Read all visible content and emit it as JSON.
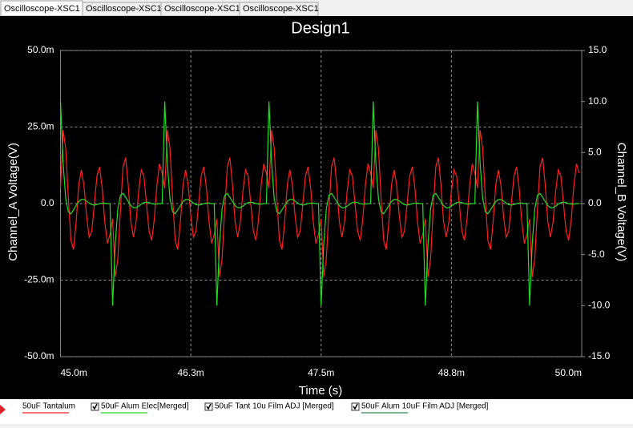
{
  "tabs": [
    "Oscilloscope-XSC1",
    "Oscilloscope-XSC1",
    "Oscilloscope-XSC1",
    "Oscilloscope-XSC1"
  ],
  "chart_data": {
    "type": "line",
    "title": "Design1",
    "x_label": "Time (s)",
    "y_label": "Channel_A Voltage(V)",
    "y2_label": "Channel_B Voltage(V)",
    "grid": true,
    "xlim": [
      0.045,
      0.05
    ],
    "xticks": [
      {
        "value": 0.045,
        "label": "45.0m"
      },
      {
        "value": 0.04625,
        "label": "46.3m"
      },
      {
        "value": 0.0475,
        "label": "47.5m"
      },
      {
        "value": 0.04875,
        "label": "48.8m"
      },
      {
        "value": 0.05,
        "label": "50.0m"
      }
    ],
    "ylim": [
      -0.05,
      0.05
    ],
    "yticks": [
      {
        "value": -0.05,
        "label": "-50.0m"
      },
      {
        "value": -0.025,
        "label": "-25.0m"
      },
      {
        "value": 0,
        "label": "0.0"
      },
      {
        "value": 0.025,
        "label": "25.0m"
      },
      {
        "value": 0.05,
        "label": "50.0m"
      }
    ],
    "y2lim": [
      -15,
      15
    ],
    "y2ticks": [
      {
        "value": -15,
        "label": "-15.0"
      },
      {
        "value": -10,
        "label": "-10.0"
      },
      {
        "value": -5,
        "label": "-5.0"
      },
      {
        "value": 0,
        "label": "0.0"
      },
      {
        "value": 5,
        "label": "5.0"
      },
      {
        "value": 10,
        "label": "10.0"
      },
      {
        "value": 15,
        "label": "15.0"
      }
    ],
    "x": [
      0.045,
      0.045025,
      0.04505,
      0.045075,
      0.0451,
      0.045125,
      0.04515,
      0.045175,
      0.0452,
      0.045225,
      0.04525,
      0.045275,
      0.0453,
      0.045325,
      0.04535,
      0.045375,
      0.0454,
      0.045425,
      0.04545,
      0.045475,
      0.0455,
      0.045525,
      0.04555,
      0.045575,
      0.0456,
      0.045625,
      0.04565,
      0.045675,
      0.0457,
      0.045725,
      0.04575,
      0.045775,
      0.0458,
      0.045825,
      0.04585,
      0.045875,
      0.0459,
      0.045925,
      0.04595,
      0.045975,
      0.046,
      0.046025,
      0.04605,
      0.046075,
      0.0461,
      0.046125,
      0.04615,
      0.046175,
      0.0462,
      0.046225,
      0.04625,
      0.046275,
      0.0463,
      0.046325,
      0.04635,
      0.046375,
      0.0464,
      0.046425,
      0.04645,
      0.046475,
      0.0465,
      0.046525,
      0.04655,
      0.046575,
      0.0466,
      0.046625,
      0.04665,
      0.046675,
      0.0467,
      0.046725,
      0.04675,
      0.046775,
      0.0468,
      0.046825,
      0.04685,
      0.046875,
      0.0469,
      0.046925,
      0.04695,
      0.046975,
      0.047,
      0.047025,
      0.04705,
      0.047075,
      0.0471,
      0.047125,
      0.04715,
      0.047175,
      0.0472,
      0.047225,
      0.04725,
      0.047275,
      0.0473,
      0.047325,
      0.04735,
      0.047375,
      0.0474,
      0.047425,
      0.04745,
      0.047475,
      0.0475,
      0.047525,
      0.04755,
      0.047575,
      0.0476,
      0.047625,
      0.04765,
      0.047675,
      0.0477,
      0.047725,
      0.04775,
      0.047775,
      0.0478,
      0.047825,
      0.04785,
      0.047875,
      0.0479,
      0.047925,
      0.04795,
      0.047975,
      0.048,
      0.048025,
      0.04805,
      0.048075,
      0.0481,
      0.048125,
      0.04815,
      0.048175,
      0.0482,
      0.048225,
      0.04825,
      0.048275,
      0.0483,
      0.048325,
      0.04835,
      0.048375,
      0.0484,
      0.048425,
      0.04845,
      0.048475,
      0.0485,
      0.048525,
      0.04855,
      0.048575,
      0.0486,
      0.048625,
      0.04865,
      0.048675,
      0.0487,
      0.048725,
      0.04875,
      0.048775,
      0.0488,
      0.048825,
      0.04885,
      0.048875,
      0.0489,
      0.048925,
      0.04895,
      0.048975,
      0.049,
      0.049025,
      0.04905,
      0.049075,
      0.0491,
      0.049125,
      0.04915,
      0.049175,
      0.0492,
      0.049225,
      0.04925,
      0.049275,
      0.0493,
      0.049325,
      0.04935,
      0.049375,
      0.0494,
      0.049425,
      0.04945,
      0.049475,
      0.0495,
      0.049525,
      0.04955,
      0.049575,
      0.0496,
      0.049625,
      0.04965,
      0.049675,
      0.0497,
      0.049725,
      0.04975,
      0.049775,
      0.0498,
      0.049825,
      0.04985,
      0.049875,
      0.0499,
      0.049925,
      0.04995,
      0.049975
    ],
    "series": [
      {
        "name": "50uF Tantalum",
        "color": "#ff2020",
        "values": [
          0.005,
          0.024,
          0.018,
          0.002,
          -0.012,
          -0.015,
          -0.006,
          0.006,
          0.011,
          0.006,
          -0.004,
          -0.011,
          -0.009,
          0,
          0.009,
          0.012,
          0.005,
          -0.006,
          -0.013,
          -0.01,
          -0.005,
          -0.024,
          -0.018,
          -0.002,
          0.012,
          0.015,
          0.006,
          -0.006,
          -0.011,
          -0.006,
          0.004,
          0.011,
          0.009,
          0,
          -0.009,
          -0.012,
          -0.005,
          0.006,
          0.013,
          0.01,
          0.005,
          0.024,
          0.018,
          0.002,
          -0.012,
          -0.015,
          -0.006,
          0.006,
          0.011,
          0.006,
          -0.004,
          -0.011,
          -0.009,
          0,
          0.009,
          0.012,
          0.005,
          -0.006,
          -0.013,
          -0.01,
          -0.005,
          -0.024,
          -0.018,
          -0.002,
          0.012,
          0.015,
          0.006,
          -0.006,
          -0.011,
          -0.006,
          0.004,
          0.011,
          0.009,
          0,
          -0.009,
          -0.012,
          -0.005,
          0.006,
          0.013,
          0.01,
          0.005,
          0.024,
          0.018,
          0.002,
          -0.012,
          -0.015,
          -0.006,
          0.006,
          0.011,
          0.006,
          -0.004,
          -0.011,
          -0.009,
          0,
          0.009,
          0.012,
          0.005,
          -0.006,
          -0.013,
          -0.01,
          -0.005,
          -0.024,
          -0.018,
          -0.002,
          0.012,
          0.015,
          0.006,
          -0.006,
          -0.011,
          -0.006,
          0.004,
          0.011,
          0.009,
          0,
          -0.009,
          -0.012,
          -0.005,
          0.006,
          0.013,
          0.01,
          0.005,
          0.024,
          0.018,
          0.002,
          -0.012,
          -0.015,
          -0.006,
          0.006,
          0.011,
          0.006,
          -0.004,
          -0.011,
          -0.009,
          0,
          0.009,
          0.012,
          0.005,
          -0.006,
          -0.013,
          -0.01,
          -0.005,
          -0.024,
          -0.018,
          -0.002,
          0.012,
          0.015,
          0.006,
          -0.006,
          -0.011,
          -0.006,
          0.004,
          0.011,
          0.009,
          0,
          -0.009,
          -0.012,
          -0.005,
          0.006,
          0.013,
          0.01,
          0.005,
          0.024,
          0.018,
          0.002,
          -0.012,
          -0.015,
          -0.006,
          0.006,
          0.011,
          0.006,
          -0.004,
          -0.011,
          -0.009,
          0,
          0.009,
          0.012,
          0.005,
          -0.006,
          -0.013,
          -0.01,
          -0.005,
          -0.024,
          -0.018,
          -0.002,
          0.012,
          0.015,
          0.006,
          -0.006,
          -0.011,
          -0.006,
          0.004,
          0.011,
          0.009,
          0,
          -0.009,
          -0.012,
          -0.005,
          0.006,
          0.013,
          0.01
        ]
      },
      {
        "name": "50uF Alum Elec[Merged]",
        "color": "#22dd22",
        "axis": "y2",
        "values": [
          10,
          4,
          0.5,
          -0.8,
          -1,
          -0.6,
          -0.2,
          0.2,
          0.4,
          0.4,
          0.25,
          0.05,
          -0.1,
          -0.15,
          -0.1,
          0,
          0.05,
          0.05,
          0,
          0,
          -10,
          -4,
          -0.5,
          0.8,
          1,
          0.6,
          0.2,
          -0.2,
          -0.4,
          -0.4,
          -0.25,
          -0.05,
          0.1,
          0.15,
          0.1,
          0,
          -0.05,
          -0.05,
          0,
          0,
          10,
          4,
          0.5,
          -0.8,
          -1,
          -0.6,
          -0.2,
          0.2,
          0.4,
          0.4,
          0.25,
          0.05,
          -0.1,
          -0.15,
          -0.1,
          0,
          0.05,
          0.05,
          0,
          0,
          -10,
          -4,
          -0.5,
          0.8,
          1,
          0.6,
          0.2,
          -0.2,
          -0.4,
          -0.4,
          -0.25,
          -0.05,
          0.1,
          0.15,
          0.1,
          0,
          -0.05,
          -0.05,
          0,
          0,
          10,
          4,
          0.5,
          -0.8,
          -1,
          -0.6,
          -0.2,
          0.2,
          0.4,
          0.4,
          0.25,
          0.05,
          -0.1,
          -0.15,
          -0.1,
          0,
          0.05,
          0.05,
          0,
          0,
          -10,
          -4,
          -0.5,
          0.8,
          1,
          0.6,
          0.2,
          -0.2,
          -0.4,
          -0.4,
          -0.25,
          -0.05,
          0.1,
          0.15,
          0.1,
          0,
          -0.05,
          -0.05,
          0,
          0,
          10,
          4,
          0.5,
          -0.8,
          -1,
          -0.6,
          -0.2,
          0.2,
          0.4,
          0.4,
          0.25,
          0.05,
          -0.1,
          -0.15,
          -0.1,
          0,
          0.05,
          0.05,
          0,
          0,
          -10,
          -4,
          -0.5,
          0.8,
          1,
          0.6,
          0.2,
          -0.2,
          -0.4,
          -0.4,
          -0.25,
          -0.05,
          0.1,
          0.15,
          0.1,
          0,
          -0.05,
          -0.05,
          0,
          0,
          10,
          4,
          0.5,
          -0.8,
          -1,
          -0.6,
          -0.2,
          0.2,
          0.4,
          0.4,
          0.25,
          0.05,
          -0.1,
          -0.15,
          -0.1,
          0,
          0.05,
          0.05,
          0,
          0,
          -10,
          -4,
          -0.5,
          0.8,
          1,
          0.6,
          0.2,
          -0.2,
          -0.4,
          -0.4,
          -0.25,
          -0.05,
          0.1,
          0.15,
          0.1,
          0,
          -0.05,
          -0.05,
          0,
          0
        ]
      },
      {
        "name": "50uF Tant 10u Film ADJ [Merged]",
        "color": "#ffffff"
      },
      {
        "name": "50uF Alum 10uF Film ADJ [Merged]",
        "color": "#2e8b57"
      }
    ]
  }
}
